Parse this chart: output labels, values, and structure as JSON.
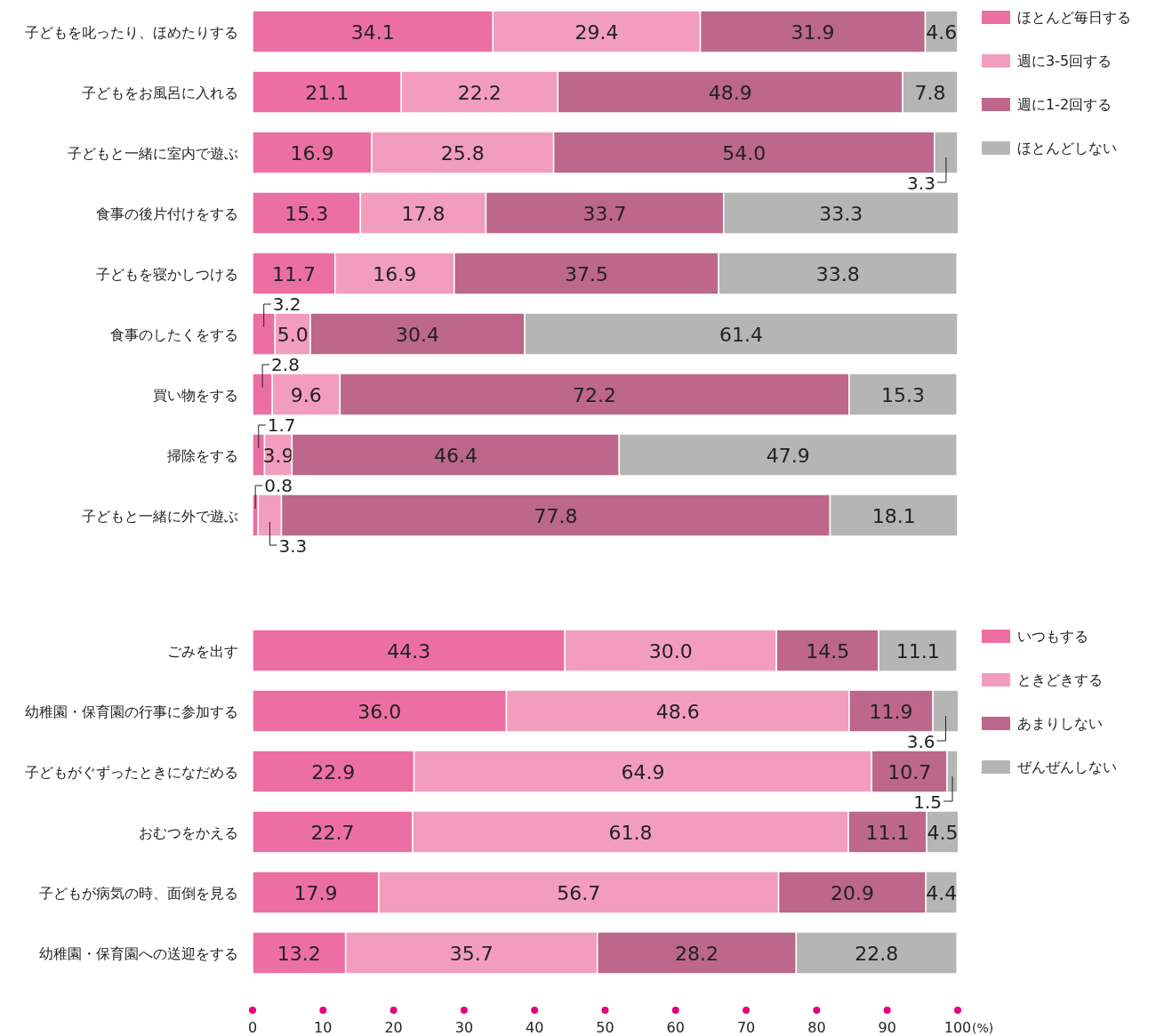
{
  "chart_data": [
    {
      "type": "bar",
      "orientation": "horizontal",
      "stacked": true,
      "legend": "right",
      "tick_labels": "y",
      "xlim": [
        0,
        100
      ],
      "categories": [
        "子どもを叱ったり、ほめたりする",
        "子どもをお風呂に入れる",
        "子どもと一緒に室内で遊ぶ",
        "食事の後片付けをする",
        "子どもを寝かしつける",
        "食事のしたくをする",
        "買い物をする",
        "掃除をする",
        "子どもと一緒に外で遊ぶ"
      ],
      "series": [
        {
          "name": "ほとんど毎日する",
          "color": "#ec6fa4",
          "values": [
            34.1,
            21.1,
            16.9,
            15.3,
            11.7,
            3.2,
            2.8,
            1.7,
            0.8
          ],
          "value_labels": [
            "34.1",
            "21.1",
            "16.9",
            "15.3",
            "11.7",
            "3.2",
            "2.8",
            "1.7",
            "0.8"
          ]
        },
        {
          "name": "週に3-5回する",
          "color": "#f29dc0",
          "values": [
            29.4,
            22.2,
            25.8,
            17.8,
            16.9,
            5.0,
            9.6,
            3.9,
            3.3
          ],
          "value_labels": [
            "29.4",
            "22.2",
            "25.8",
            "17.8",
            "16.9",
            "5.0",
            "9.6",
            "3.9",
            "3.3"
          ]
        },
        {
          "name": "週に1-2回する",
          "color": "#bc678b",
          "values": [
            31.9,
            48.9,
            54.0,
            33.7,
            37.5,
            30.4,
            72.2,
            46.4,
            77.8
          ],
          "value_labels": [
            "31.9",
            "48.9",
            "54.0",
            "33.7",
            "37.5",
            "30.4",
            "72.2",
            "46.4",
            "77.8"
          ]
        },
        {
          "name": "ほとんどしない",
          "color": "#b5b5b5",
          "values": [
            4.6,
            7.8,
            3.3,
            33.3,
            33.8,
            61.4,
            15.3,
            47.9,
            18.1
          ],
          "value_labels": [
            "4.6",
            "7.8",
            "3.3",
            "33.3",
            "33.8",
            "61.4",
            "15.3",
            "47.9",
            "18.1"
          ]
        }
      ]
    },
    {
      "type": "bar",
      "orientation": "horizontal",
      "stacked": true,
      "legend": "right",
      "xlim": [
        0,
        100
      ],
      "xticks": [
        0,
        10,
        20,
        30,
        40,
        50,
        60,
        70,
        80,
        90,
        100
      ],
      "xlabel": "(%)",
      "categories": [
        "ごみを出す",
        "幼稚園・保育園の行事に参加する",
        "子どもがぐずったときになだめる",
        "おむつをかえる",
        "子どもが病気の時、面倒を見る",
        "幼稚園・保育園への送迎をする"
      ],
      "series": [
        {
          "name": "いつもする",
          "color": "#ec6fa4",
          "values": [
            44.3,
            36.0,
            22.9,
            22.7,
            17.9,
            13.2
          ],
          "value_labels": [
            "44.3",
            "36.0",
            "22.9",
            "22.7",
            "17.9",
            "13.2"
          ]
        },
        {
          "name": "ときどきする",
          "color": "#f29dc0",
          "values": [
            30.0,
            48.6,
            64.9,
            61.8,
            56.7,
            35.7
          ],
          "value_labels": [
            "30.0",
            "48.6",
            "64.9",
            "61.8",
            "56.7",
            "35.7"
          ]
        },
        {
          "name": "あまりしない",
          "color": "#bc678b",
          "values": [
            14.5,
            11.9,
            10.7,
            11.1,
            20.9,
            28.2
          ],
          "value_labels": [
            "14.5",
            "11.9",
            "10.7",
            "11.1",
            "20.9",
            "28.2"
          ]
        },
        {
          "name": "ぜんぜんしない",
          "color": "#b5b5b5",
          "values": [
            11.1,
            3.6,
            1.5,
            4.5,
            4.4,
            22.8
          ],
          "value_labels": [
            "11.1",
            "3.6",
            "1.5",
            "4.5",
            "4.4",
            "22.8"
          ]
        }
      ]
    }
  ]
}
